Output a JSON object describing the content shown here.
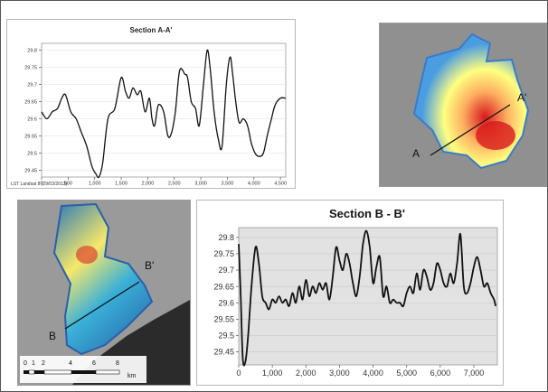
{
  "chart_data": [
    {
      "type": "line",
      "title": "Section A-A'",
      "xlabel": "",
      "ylabel": "",
      "xlim": [
        0,
        4600
      ],
      "ylim": [
        29.43,
        29.82
      ],
      "x_ticks": [
        0,
        500,
        1000,
        1500,
        2000,
        2500,
        3000,
        3500,
        4000,
        4500
      ],
      "x_tick_labels": [
        "0",
        "500",
        "1,000",
        "1,500",
        "2,000",
        "2,500",
        "3,000",
        "3,500",
        "4,000",
        "4,500"
      ],
      "y_ticks": [
        29.45,
        29.5,
        29.55,
        29.6,
        29.65,
        29.7,
        29.75,
        29.8
      ],
      "y_tick_labels": [
        "29.45",
        "29.5",
        "29.55",
        "29.6",
        "29.65",
        "29.7",
        "29.75",
        "29.8"
      ],
      "grid": true,
      "footnote": "LST Landsat 8 (29/03/2013)",
      "series": [
        {
          "x": [
            0,
            100,
            200,
            300,
            380,
            450,
            550,
            650,
            750,
            850,
            950,
            1020,
            1080,
            1150,
            1250,
            1380,
            1500,
            1580,
            1650,
            1720,
            1800,
            1870,
            1950,
            2030,
            2080,
            2130,
            2200,
            2300,
            2380,
            2450,
            2520,
            2600,
            2700,
            2750,
            2820,
            2900,
            2970,
            3050,
            3120,
            3180,
            3250,
            3330,
            3400,
            3480,
            3550,
            3600,
            3650,
            3720,
            3800,
            3880,
            3950,
            4020,
            4100,
            4180,
            4250,
            4330,
            4400,
            4500,
            4600
          ],
          "values": [
            29.62,
            29.6,
            29.62,
            29.63,
            29.66,
            29.67,
            29.62,
            29.6,
            29.56,
            29.52,
            29.46,
            29.44,
            29.43,
            29.47,
            29.6,
            29.63,
            29.72,
            29.68,
            29.66,
            29.69,
            29.67,
            29.68,
            29.62,
            29.66,
            29.6,
            29.58,
            29.64,
            29.62,
            29.55,
            29.56,
            29.62,
            29.74,
            29.73,
            29.72,
            29.65,
            29.63,
            29.58,
            29.7,
            29.8,
            29.74,
            29.62,
            29.54,
            29.52,
            29.7,
            29.78,
            29.73,
            29.66,
            29.59,
            29.6,
            29.58,
            29.53,
            29.5,
            29.49,
            29.5,
            29.55,
            29.6,
            29.64,
            29.66,
            29.66
          ]
        }
      ]
    },
    {
      "type": "line",
      "title": "Section B - B'",
      "xlabel": "",
      "ylabel": "",
      "xlim": [
        0,
        7700
      ],
      "ylim": [
        29.41,
        29.83
      ],
      "x_ticks": [
        0,
        1000,
        2000,
        3000,
        4000,
        5000,
        6000,
        7000
      ],
      "x_tick_labels": [
        "0",
        "1,000",
        "2,000",
        "3,000",
        "4,000",
        "5,000",
        "6,000",
        "7,000"
      ],
      "y_ticks": [
        29.45,
        29.5,
        29.55,
        29.6,
        29.65,
        29.7,
        29.75,
        29.8
      ],
      "y_tick_labels": [
        "29.45",
        "29.5",
        "29.55",
        "29.6",
        "29.65",
        "29.7",
        "29.75",
        "29.8"
      ],
      "grid": true,
      "series": [
        {
          "x": [
            0,
            60,
            120,
            200,
            280,
            380,
            500,
            600,
            700,
            800,
            900,
            1000,
            1100,
            1200,
            1300,
            1400,
            1500,
            1600,
            1700,
            1800,
            1900,
            2000,
            2100,
            2200,
            2300,
            2400,
            2500,
            2600,
            2700,
            2800,
            2900,
            3000,
            3100,
            3200,
            3300,
            3400,
            3500,
            3600,
            3700,
            3800,
            3900,
            4000,
            4100,
            4200,
            4300,
            4400,
            4500,
            4600,
            4700,
            4800,
            4900,
            5000,
            5100,
            5200,
            5300,
            5400,
            5500,
            5600,
            5700,
            5800,
            5900,
            6000,
            6100,
            6200,
            6300,
            6400,
            6500,
            6600,
            6700,
            6800,
            6900,
            7000,
            7100,
            7200,
            7300,
            7400,
            7500,
            7600,
            7650
          ],
          "values": [
            29.78,
            29.62,
            29.43,
            29.42,
            29.5,
            29.65,
            29.77,
            29.72,
            29.62,
            29.6,
            29.58,
            29.61,
            29.6,
            29.62,
            29.6,
            29.61,
            29.59,
            29.63,
            29.6,
            29.65,
            29.61,
            29.67,
            29.62,
            29.65,
            29.63,
            29.66,
            29.64,
            29.66,
            29.61,
            29.68,
            29.77,
            29.73,
            29.7,
            29.75,
            29.72,
            29.66,
            29.62,
            29.68,
            29.78,
            29.82,
            29.77,
            29.66,
            29.71,
            29.74,
            29.62,
            29.65,
            29.6,
            29.61,
            29.6,
            29.6,
            29.59,
            29.63,
            29.65,
            29.63,
            29.69,
            29.64,
            29.7,
            29.68,
            29.64,
            29.66,
            29.72,
            29.7,
            29.66,
            29.65,
            29.69,
            29.66,
            29.72,
            29.81,
            29.65,
            29.63,
            29.66,
            29.71,
            29.74,
            29.7,
            29.65,
            29.66,
            29.63,
            29.61,
            29.59
          ]
        }
      ]
    }
  ],
  "maps": {
    "top_right": {
      "section_start": "A",
      "section_end": "A'",
      "colors": {
        "high": "#d7191c",
        "mid": "#fdae61",
        "low": "#2c7bb6",
        "background": "#8a8a8a"
      }
    },
    "bottom_left": {
      "section_start": "B",
      "section_end": "B'",
      "scale_labels": [
        "0",
        "1",
        "2",
        "4",
        "6",
        "8"
      ],
      "scale_unit": "km",
      "colors": {
        "high": "#d7191c",
        "mid": "#ffff66",
        "low": "#2c7bb6",
        "background": "#9a9a9a"
      }
    }
  }
}
